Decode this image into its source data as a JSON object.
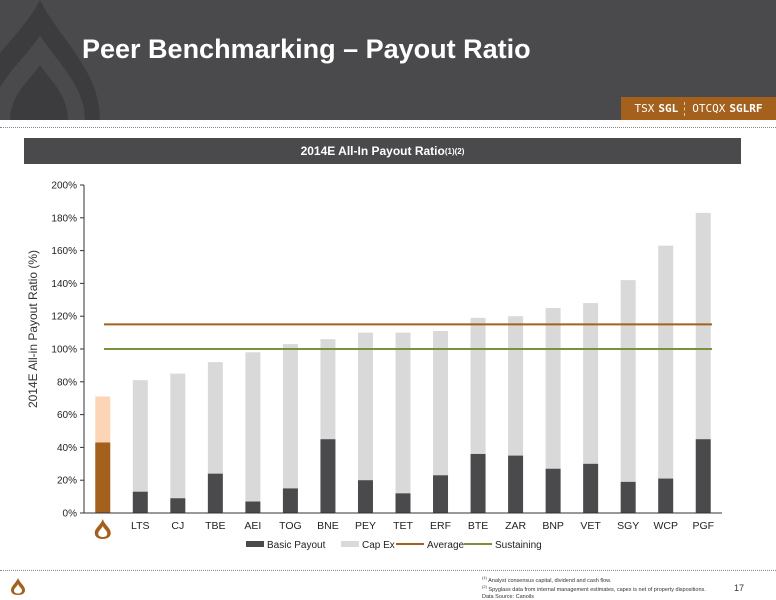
{
  "header": {
    "title": "Peer Benchmarking – Payout Ratio",
    "ticker": {
      "exchange1": "TSX",
      "symbol1": "SGL",
      "exchange2": "OTCQX",
      "symbol2": "SGLRF"
    }
  },
  "banner": {
    "title": "2014E All-In Payout Ratio",
    "superscript": "(1)(2)"
  },
  "colors": {
    "header_bg": "#4a4a4c",
    "accent": "#a4611d",
    "basic_payout": "#4a4a4c",
    "cap_ex": "#d9d9d9",
    "average": "#a4611d",
    "sustaining": "#77933c",
    "company_basic": "#a4611d",
    "company_capex": "#fbd5b5"
  },
  "chart_data": {
    "type": "bar",
    "stacked": true,
    "title": "2014E All-In Payout Ratio",
    "ylabel": "2014E All-in Payout Ratio (%)",
    "xlabel": "",
    "ylim": [
      0,
      200
    ],
    "yticks": [
      "0%",
      "20%",
      "40%",
      "60%",
      "80%",
      "100%",
      "120%",
      "140%",
      "160%",
      "180%",
      "200%"
    ],
    "grid": false,
    "legend_position": "bottom",
    "first_category_is_logo": true,
    "categories": [
      "",
      "LTS",
      "CJ",
      "TBE",
      "AEI",
      "TOG",
      "BNE",
      "PEY",
      "TET",
      "ERF",
      "BTE",
      "ZAR",
      "BNP",
      "VET",
      "SGY",
      "WCP",
      "PGF"
    ],
    "series": [
      {
        "name": "Basic Payout",
        "values": [
          43,
          13,
          9,
          24,
          7,
          15,
          45,
          20,
          12,
          23,
          36,
          35,
          27,
          30,
          19,
          21,
          45
        ]
      },
      {
        "name": "Cap Ex",
        "values": [
          28,
          68,
          76,
          68,
          91,
          88,
          61,
          90,
          98,
          88,
          83,
          85,
          98,
          98,
          123,
          142,
          138
        ]
      }
    ],
    "lines": [
      {
        "name": "Average",
        "value": 115
      },
      {
        "name": "Sustaining",
        "value": 100
      }
    ]
  },
  "footer": {
    "notes": [
      {
        "num": "(1)",
        "text": "Analyst consensus capital, dividend and cash flow."
      },
      {
        "num": "(2)",
        "text": "Spyglass data from internal management estimates, capex is net of property dispositions."
      },
      {
        "num": "",
        "text": "Data Source: Canoils"
      }
    ],
    "page_number": "17"
  }
}
